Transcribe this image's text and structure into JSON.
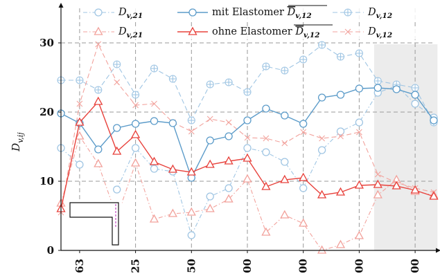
{
  "chart_data": {
    "type": "line",
    "ylabel": "D_{v,ij}",
    "ylim": [
      0,
      35
    ],
    "yticks": [
      0,
      10,
      20,
      30
    ],
    "x": [
      0,
      1,
      2,
      3,
      4,
      5,
      6,
      7,
      8,
      9,
      10,
      11,
      12,
      13,
      14,
      15,
      16,
      17,
      18,
      19,
      20
    ],
    "xlim": [
      0,
      20
    ],
    "xtick_positions": [
      1,
      4,
      7,
      10,
      13,
      16,
      19
    ],
    "xtick_labels": [
      "63",
      "25",
      "50",
      "00",
      "00",
      "00",
      "00"
    ],
    "shaded_region": [
      16.8,
      20.2
    ],
    "grid": true,
    "colors": {
      "blue": "#5b9bc9",
      "red": "#e8423c",
      "light_blue": "#9fc5e3",
      "light_red": "#f2a29c",
      "shade": "#ececec"
    },
    "legend": {
      "row1": {
        "left": "D_{v,21}",
        "middle_prefix": "mit Elastomer ",
        "middle_symbol": "D_{v,12}",
        "right": "D_{v,12}"
      },
      "row2": {
        "left": "D_{v,21}",
        "middle_prefix": "ohne Elastomer ",
        "middle_symbol": "D_{v,12}",
        "right": "D_{v,12}"
      }
    },
    "series": [
      {
        "key": "blue_avg",
        "group": "mit Elastomer",
        "style": "solid-circle",
        "values": [
          19.8,
          18.4,
          14.6,
          17.7,
          18.3,
          18.7,
          18.4,
          10.5,
          15.9,
          16.5,
          18.8,
          20.5,
          19.5,
          18.3,
          22.1,
          22.5,
          23.4,
          23.5,
          23.3,
          22.5,
          18.8
        ]
      },
      {
        "key": "blue_d21",
        "group": "mit Elastomer",
        "style": "dashdot-circle",
        "values": [
          14.8,
          12.4,
          null,
          8.8,
          14.8,
          11.8,
          11.4,
          2.2,
          7.8,
          9.0,
          14.8,
          14.2,
          12.8,
          9.0,
          14.5,
          17.2,
          18.5,
          22.8,
          23.8,
          21.2,
          19.2
        ]
      },
      {
        "key": "blue_d12",
        "group": "mit Elastomer",
        "style": "dashed-plus",
        "values": [
          24.6,
          24.6,
          23.2,
          26.9,
          22.5,
          26.3,
          24.8,
          18.8,
          24.0,
          24.3,
          22.9,
          26.6,
          26.0,
          27.6,
          29.7,
          28.0,
          28.5,
          24.5,
          24.0,
          23.5,
          18.5
        ]
      },
      {
        "key": "red_avg",
        "group": "ohne Elastomer",
        "style": "solid-triangle",
        "values": [
          6.0,
          18.5,
          21.5,
          14.3,
          16.7,
          12.8,
          11.7,
          11.3,
          12.4,
          12.9,
          13.3,
          9.2,
          10.2,
          10.5,
          8.0,
          8.4,
          9.4,
          9.5,
          9.3,
          8.7,
          7.8
        ]
      },
      {
        "key": "red_d21",
        "group": "ohne Elastomer",
        "style": "dashdot-triangle",
        "values": [
          6.8,
          16.5,
          12.5,
          4.8,
          12.6,
          4.5,
          5.3,
          5.5,
          6.0,
          7.4,
          10.3,
          2.6,
          5.1,
          3.9,
          0.0,
          0.8,
          2.1,
          8.0,
          10.2,
          8.5,
          8.0
        ]
      },
      {
        "key": "red_d12",
        "group": "ohne Elastomer",
        "style": "dashed-x",
        "values": [
          5.5,
          21.2,
          29.8,
          24.3,
          21.0,
          21.2,
          18.5,
          17.2,
          19.0,
          18.5,
          16.3,
          16.2,
          15.5,
          17.1,
          16.2,
          16.5,
          17.1,
          11.0,
          9.8,
          9.0,
          8.4
        ]
      }
    ],
    "inset_icon": "l-bracket-cross-section-icon"
  }
}
